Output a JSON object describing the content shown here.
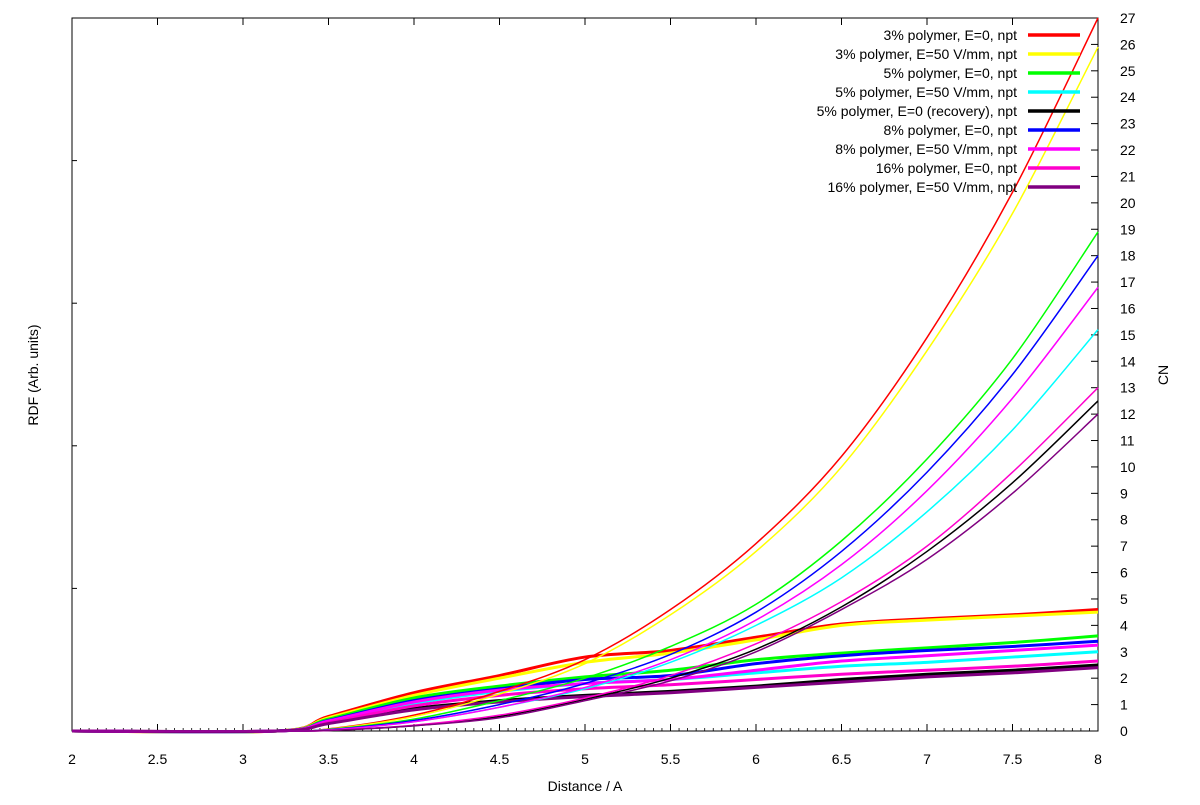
{
  "chart_data": {
    "type": "line",
    "xlabel": "Distance / A",
    "ylabel": "RDF (Arb. units)",
    "y2label": "CN",
    "xlim": [
      2,
      8
    ],
    "y2lim": [
      0,
      27
    ],
    "xticks": [
      2,
      2.5,
      3,
      3.5,
      4,
      4.5,
      5,
      5.5,
      6,
      6.5,
      7,
      7.5,
      8
    ],
    "xtick_labels": [
      "2",
      "2.5",
      "3",
      "3.5",
      "4",
      "4.5",
      "5",
      "5.5",
      "6",
      "6.5",
      "7",
      "7.5",
      "8"
    ],
    "y2ticks": [
      0,
      1,
      2,
      3,
      4,
      5,
      6,
      7,
      8,
      9,
      10,
      11,
      12,
      13,
      14,
      15,
      16,
      17,
      18,
      19,
      20,
      21,
      22,
      23,
      24,
      25,
      26,
      27
    ],
    "y2tick_labels": [
      "0",
      "1",
      "2",
      "3",
      "4",
      "5",
      "6",
      "7",
      "8",
      "9",
      "10",
      "11",
      "12",
      "13",
      "14",
      "15",
      "16",
      "17",
      "18",
      "19",
      "20",
      "21",
      "22",
      "23",
      "24",
      "25",
      "26",
      "27"
    ],
    "legend_position": "top-right",
    "series": [
      {
        "name": "3% polymer, E=0, npt",
        "color": "#ff0000",
        "rdf": [
          [
            2,
            0
          ],
          [
            3.2,
            0
          ],
          [
            3.5,
            0.55
          ],
          [
            4,
            1.45
          ],
          [
            4.5,
            2.1
          ],
          [
            5,
            2.8
          ],
          [
            5.5,
            3.05
          ],
          [
            6,
            3.55
          ],
          [
            6.5,
            4.05
          ],
          [
            7,
            4.25
          ],
          [
            7.5,
            4.4
          ],
          [
            8,
            4.6
          ]
        ],
        "cn": [
          [
            2,
            0
          ],
          [
            3.2,
            0
          ],
          [
            3.5,
            0.08
          ],
          [
            4,
            0.6
          ],
          [
            4.5,
            1.5
          ],
          [
            5,
            2.7
          ],
          [
            5.5,
            4.6
          ],
          [
            6,
            7.1
          ],
          [
            6.5,
            10.4
          ],
          [
            7,
            14.9
          ],
          [
            7.5,
            20.4
          ],
          [
            8,
            27
          ]
        ]
      },
      {
        "name": "3% polymer, E=50 V/mm, npt",
        "color": "#ffff00",
        "rdf": [
          [
            2,
            0
          ],
          [
            3.2,
            0
          ],
          [
            3.5,
            0.5
          ],
          [
            4,
            1.35
          ],
          [
            4.5,
            2.0
          ],
          [
            5,
            2.6
          ],
          [
            5.5,
            2.95
          ],
          [
            6,
            3.45
          ],
          [
            6.5,
            4.0
          ],
          [
            7,
            4.2
          ],
          [
            7.5,
            4.35
          ],
          [
            8,
            4.5
          ]
        ],
        "cn": [
          [
            2,
            0
          ],
          [
            3.2,
            0
          ],
          [
            3.5,
            0.07
          ],
          [
            4,
            0.55
          ],
          [
            4.5,
            1.4
          ],
          [
            5,
            2.55
          ],
          [
            5.5,
            4.4
          ],
          [
            6,
            6.8
          ],
          [
            6.5,
            10.0
          ],
          [
            7,
            14.4
          ],
          [
            7.5,
            19.6
          ],
          [
            8,
            25.9
          ]
        ]
      },
      {
        "name": "5% polymer, E=0, npt",
        "color": "#00ff00",
        "rdf": [
          [
            2,
            0
          ],
          [
            3.2,
            0
          ],
          [
            3.5,
            0.45
          ],
          [
            4,
            1.25
          ],
          [
            4.5,
            1.7
          ],
          [
            5,
            2.05
          ],
          [
            5.5,
            2.3
          ],
          [
            6,
            2.7
          ],
          [
            6.5,
            2.95
          ],
          [
            7,
            3.15
          ],
          [
            7.5,
            3.35
          ],
          [
            8,
            3.6
          ]
        ],
        "cn": [
          [
            2,
            0
          ],
          [
            3.2,
            0
          ],
          [
            3.5,
            0.06
          ],
          [
            4,
            0.45
          ],
          [
            4.5,
            1.15
          ],
          [
            5,
            2.0
          ],
          [
            5.5,
            3.2
          ],
          [
            6,
            4.8
          ],
          [
            6.5,
            7.2
          ],
          [
            7,
            10.3
          ],
          [
            7.5,
            14.1
          ],
          [
            8,
            18.9
          ]
        ]
      },
      {
        "name": "5% polymer, E=50 V/mm, npt",
        "color": "#00ffff",
        "rdf": [
          [
            2,
            0
          ],
          [
            3.2,
            0
          ],
          [
            3.5,
            0.35
          ],
          [
            4,
            1.05
          ],
          [
            4.5,
            1.5
          ],
          [
            5,
            1.8
          ],
          [
            5.5,
            1.95
          ],
          [
            6,
            2.2
          ],
          [
            6.5,
            2.45
          ],
          [
            7,
            2.6
          ],
          [
            7.5,
            2.8
          ],
          [
            8,
            3.0
          ]
        ],
        "cn": [
          [
            2,
            0
          ],
          [
            3.2,
            0
          ],
          [
            3.5,
            0.04
          ],
          [
            4,
            0.35
          ],
          [
            4.5,
            0.9
          ],
          [
            5,
            1.6
          ],
          [
            5.5,
            2.6
          ],
          [
            6,
            4.0
          ],
          [
            6.5,
            5.8
          ],
          [
            7,
            8.3
          ],
          [
            7.5,
            11.4
          ],
          [
            8,
            15.2
          ]
        ]
      },
      {
        "name": "5% polymer, E=0 (recovery), npt",
        "color": "#000000",
        "rdf": [
          [
            2,
            0
          ],
          [
            3.2,
            0
          ],
          [
            3.5,
            0.3
          ],
          [
            4,
            0.85
          ],
          [
            4.5,
            1.15
          ],
          [
            5,
            1.35
          ],
          [
            5.5,
            1.5
          ],
          [
            6,
            1.7
          ],
          [
            6.5,
            1.95
          ],
          [
            7,
            2.15
          ],
          [
            7.5,
            2.3
          ],
          [
            8,
            2.5
          ]
        ],
        "cn": [
          [
            2,
            0
          ],
          [
            3.2,
            0
          ],
          [
            3.5,
            0.02
          ],
          [
            4,
            0.2
          ],
          [
            4.5,
            0.55
          ],
          [
            5,
            1.2
          ],
          [
            5.5,
            2.0
          ],
          [
            6,
            3.1
          ],
          [
            6.5,
            4.7
          ],
          [
            7,
            6.8
          ],
          [
            7.5,
            9.4
          ],
          [
            8,
            12.5
          ]
        ]
      },
      {
        "name": "8% polymer, E=0, npt",
        "color": "#0000ff",
        "rdf": [
          [
            2,
            0
          ],
          [
            3.2,
            0
          ],
          [
            3.5,
            0.4
          ],
          [
            4,
            1.15
          ],
          [
            4.5,
            1.6
          ],
          [
            5,
            1.95
          ],
          [
            5.5,
            2.1
          ],
          [
            6,
            2.55
          ],
          [
            6.5,
            2.85
          ],
          [
            7,
            3.05
          ],
          [
            7.5,
            3.2
          ],
          [
            8,
            3.4
          ]
        ],
        "cn": [
          [
            2,
            0
          ],
          [
            3.2,
            0
          ],
          [
            3.5,
            0.05
          ],
          [
            4,
            0.4
          ],
          [
            4.5,
            1.0
          ],
          [
            5,
            1.8
          ],
          [
            5.5,
            2.9
          ],
          [
            6,
            4.5
          ],
          [
            6.5,
            6.8
          ],
          [
            7,
            9.8
          ],
          [
            7.5,
            13.5
          ],
          [
            8,
            18.0
          ]
        ]
      },
      {
        "name": "8% polymer, E=50 V/mm, npt",
        "color": "#ff00ff",
        "rdf": [
          [
            2,
            0
          ],
          [
            3.2,
            0
          ],
          [
            3.5,
            0.38
          ],
          [
            4,
            1.1
          ],
          [
            4.5,
            1.55
          ],
          [
            5,
            1.8
          ],
          [
            5.5,
            1.95
          ],
          [
            6,
            2.3
          ],
          [
            6.5,
            2.65
          ],
          [
            7,
            2.85
          ],
          [
            7.5,
            3.05
          ],
          [
            8,
            3.25
          ]
        ],
        "cn": [
          [
            2,
            0
          ],
          [
            3.2,
            0
          ],
          [
            3.5,
            0.04
          ],
          [
            4,
            0.35
          ],
          [
            4.5,
            0.9
          ],
          [
            5,
            1.65
          ],
          [
            5.5,
            2.7
          ],
          [
            6,
            4.2
          ],
          [
            6.5,
            6.3
          ],
          [
            7,
            9.1
          ],
          [
            7.5,
            12.6
          ],
          [
            8,
            16.8
          ]
        ]
      },
      {
        "name": "16% polymer, E=0, npt",
        "color": "#ff00cc",
        "rdf": [
          [
            2,
            0
          ],
          [
            3.2,
            0
          ],
          [
            3.5,
            0.32
          ],
          [
            4,
            0.95
          ],
          [
            4.5,
            1.35
          ],
          [
            5,
            1.6
          ],
          [
            5.5,
            1.75
          ],
          [
            6,
            1.95
          ],
          [
            6.5,
            2.15
          ],
          [
            7,
            2.3
          ],
          [
            7.5,
            2.45
          ],
          [
            8,
            2.65
          ]
        ],
        "cn": [
          [
            2,
            0
          ],
          [
            3.2,
            0
          ],
          [
            3.5,
            0.02
          ],
          [
            4,
            0.22
          ],
          [
            4.5,
            0.6
          ],
          [
            5,
            1.25
          ],
          [
            5.5,
            2.1
          ],
          [
            6,
            3.3
          ],
          [
            6.5,
            4.9
          ],
          [
            7,
            7.0
          ],
          [
            7.5,
            9.8
          ],
          [
            8,
            13.0
          ]
        ]
      },
      {
        "name": "16% polymer, E=50 V/mm, npt",
        "color": "#800080",
        "rdf": [
          [
            2,
            0
          ],
          [
            3.2,
            0
          ],
          [
            3.5,
            0.28
          ],
          [
            4,
            0.8
          ],
          [
            4.5,
            1.1
          ],
          [
            5,
            1.3
          ],
          [
            5.5,
            1.45
          ],
          [
            6,
            1.65
          ],
          [
            6.5,
            1.85
          ],
          [
            7,
            2.05
          ],
          [
            7.5,
            2.2
          ],
          [
            8,
            2.4
          ]
        ],
        "cn": [
          [
            2,
            0
          ],
          [
            3.2,
            0
          ],
          [
            3.5,
            0.02
          ],
          [
            4,
            0.2
          ],
          [
            4.5,
            0.5
          ],
          [
            5,
            1.15
          ],
          [
            5.5,
            1.9
          ],
          [
            6,
            3.0
          ],
          [
            6.5,
            4.6
          ],
          [
            7,
            6.5
          ],
          [
            7.5,
            9.0
          ],
          [
            8,
            12.0
          ]
        ]
      }
    ]
  }
}
